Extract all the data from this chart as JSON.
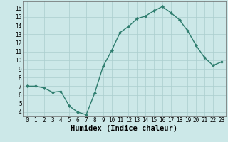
{
  "x": [
    0,
    1,
    2,
    3,
    4,
    5,
    6,
    7,
    8,
    9,
    10,
    11,
    12,
    13,
    14,
    15,
    16,
    17,
    18,
    19,
    20,
    21,
    22,
    23
  ],
  "y": [
    7.0,
    7.0,
    6.8,
    6.3,
    6.4,
    4.7,
    4.0,
    3.7,
    6.2,
    9.3,
    11.1,
    13.2,
    13.9,
    14.8,
    15.1,
    15.7,
    16.2,
    15.5,
    14.7,
    13.4,
    11.7,
    10.3,
    9.4,
    9.8
  ],
  "line_color": "#2e7d6e",
  "marker": "D",
  "marker_size": 2,
  "bg_color": "#cce8e8",
  "grid_color": "#aacece",
  "xlabel": "Humidex (Indice chaleur)",
  "ylim": [
    3.5,
    16.8
  ],
  "xlim": [
    -0.5,
    23.5
  ],
  "yticks": [
    4,
    5,
    6,
    7,
    8,
    9,
    10,
    11,
    12,
    13,
    14,
    15,
    16
  ],
  "xticks": [
    0,
    1,
    2,
    3,
    4,
    5,
    6,
    7,
    8,
    9,
    10,
    11,
    12,
    13,
    14,
    15,
    16,
    17,
    18,
    19,
    20,
    21,
    22,
    23
  ],
  "tick_label_size": 5.5,
  "xlabel_size": 7.5,
  "line_width": 1.0
}
